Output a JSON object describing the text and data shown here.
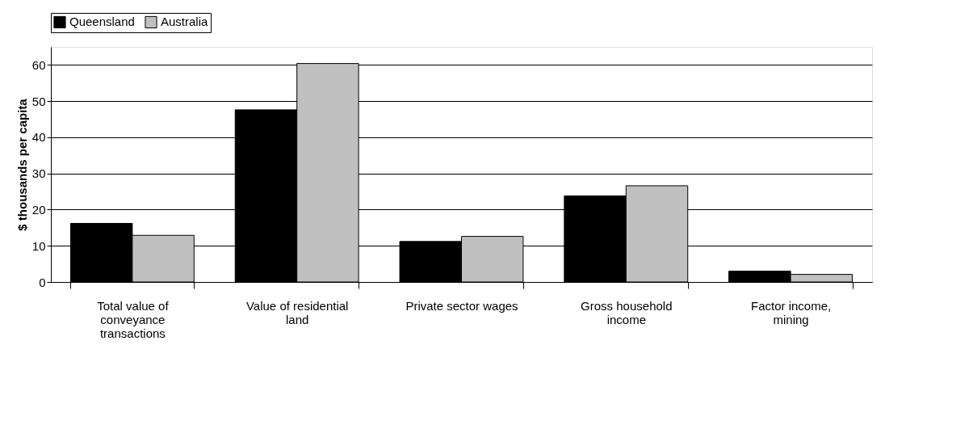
{
  "chart_data": {
    "type": "bar",
    "ylabel": "$ thousands  per capita",
    "categories": [
      "Total value of conveyance transactions",
      "Value of residential land",
      "Private sector wages",
      "Gross household income",
      "Factor income, mining"
    ],
    "series": [
      {
        "name": "Queensland",
        "color": "#000000",
        "values": [
          16.2,
          47.6,
          11.2,
          23.8,
          3.0
        ]
      },
      {
        "name": "Australia",
        "color": "#c0c0c0",
        "values": [
          12.9,
          60.4,
          12.6,
          26.6,
          2.1
        ]
      }
    ],
    "ylim": [
      0,
      65
    ],
    "yticks": [
      0,
      10,
      20,
      30,
      40,
      50,
      60
    ],
    "grid": "y",
    "legend": "top"
  }
}
